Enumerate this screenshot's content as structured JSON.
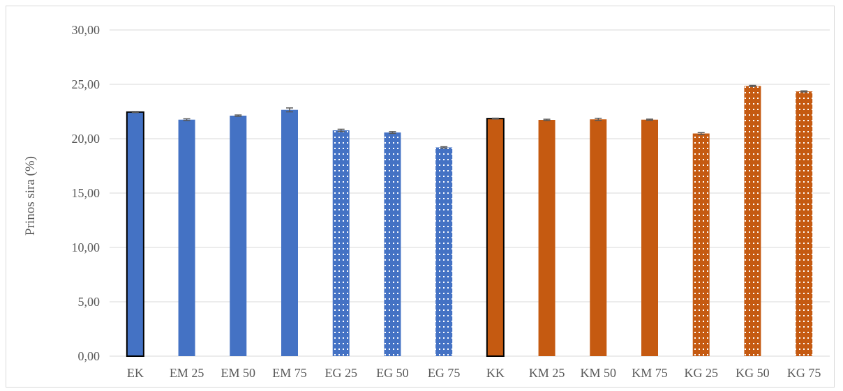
{
  "chart_data": {
    "type": "bar",
    "title": "",
    "xlabel": "",
    "ylabel": "Prinos sira (%)",
    "ylim": [
      0,
      30
    ],
    "yticks": [
      "0,00",
      "5,00",
      "10,00",
      "15,00",
      "20,00",
      "25,00",
      "30,00"
    ],
    "ytick_values": [
      0,
      5,
      10,
      15,
      20,
      25,
      30
    ],
    "grid": true,
    "legend": "none",
    "categories": [
      "EK",
      "EM 25",
      "EM 50",
      "EM 75",
      "EG 25",
      "EG 50",
      "EG 75",
      "KK",
      "KM 25",
      "KM 50",
      "KM 75",
      "KG 25",
      "KG 50",
      "KG 75"
    ],
    "values": [
      22.45,
      21.75,
      22.12,
      22.65,
      20.77,
      20.57,
      19.2,
      21.85,
      21.73,
      21.78,
      21.75,
      20.48,
      24.85,
      24.35
    ],
    "errors": [
      0.05,
      0.08,
      0.06,
      0.18,
      0.1,
      0.08,
      0.06,
      0.04,
      0.06,
      0.1,
      0.05,
      0.08,
      0.05,
      0.05
    ],
    "fill_pattern": [
      "solid",
      "solid",
      "solid",
      "solid",
      "dotted",
      "dotted",
      "dotted",
      "solid",
      "solid",
      "solid",
      "solid",
      "dotted",
      "dotted",
      "dotted"
    ],
    "outlined": [
      true,
      false,
      false,
      false,
      false,
      false,
      false,
      true,
      false,
      false,
      false,
      false,
      false,
      false
    ],
    "colors": [
      "#4472c4",
      "#4472c4",
      "#4472c4",
      "#4472c4",
      "#4472c4",
      "#4472c4",
      "#4472c4",
      "#c55a11",
      "#c55a11",
      "#c55a11",
      "#c55a11",
      "#c55a11",
      "#c55a11",
      "#c55a11"
    ],
    "grid_color": "#d9d9d9",
    "errorbar_color": "#595959"
  }
}
